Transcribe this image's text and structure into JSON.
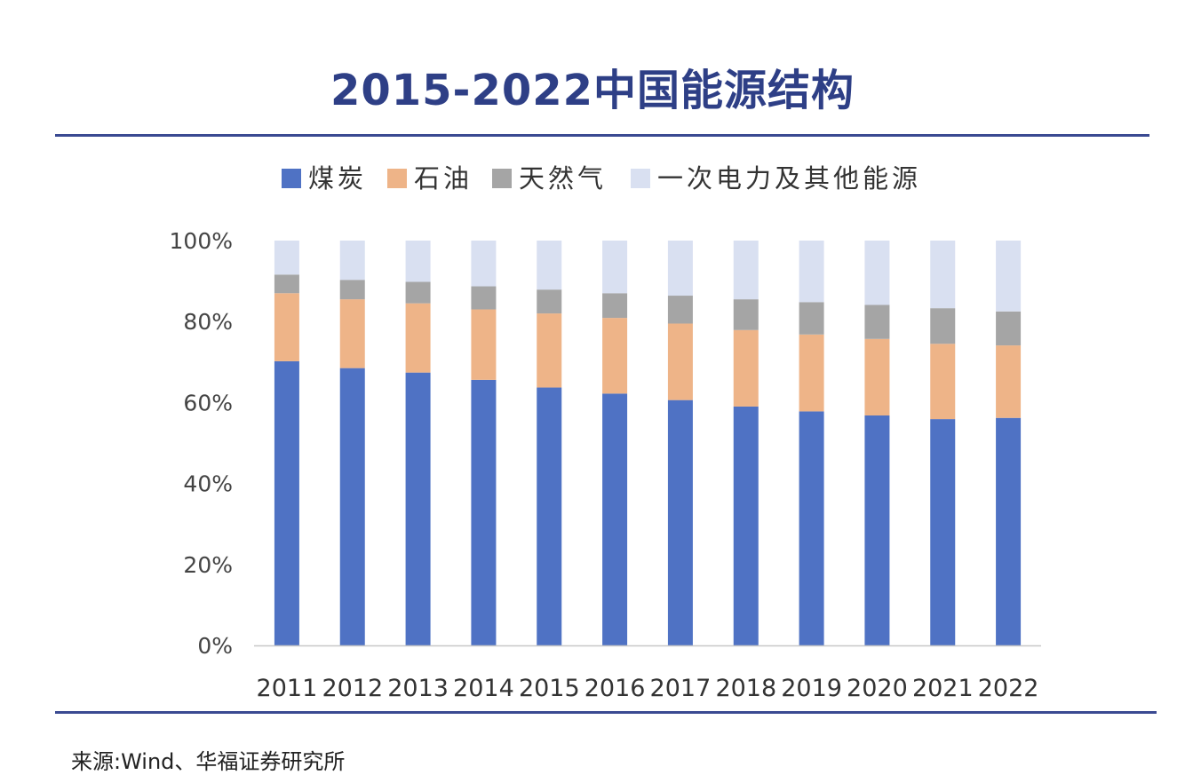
{
  "title": "2015-2022中国能源结构",
  "source": "来源:Wind、华福证券研究所",
  "chart_data": {
    "type": "bar",
    "stacked": true,
    "title": "2015-2022中国能源结构",
    "xlabel": "",
    "ylabel": "",
    "ylim": [
      0,
      100
    ],
    "y_ticks": [
      "0%",
      "20%",
      "40%",
      "60%",
      "80%",
      "100%"
    ],
    "legend_position": "top",
    "categories": [
      "2011",
      "2012",
      "2013",
      "2014",
      "2015",
      "2016",
      "2017",
      "2018",
      "2019",
      "2020",
      "2021",
      "2022"
    ],
    "series": [
      {
        "name": "煤炭",
        "color": "#4f72c4",
        "values": [
          70.2,
          68.5,
          67.4,
          65.6,
          63.7,
          62.2,
          60.6,
          59.0,
          57.8,
          56.8,
          55.9,
          56.2
        ]
      },
      {
        "name": "石油",
        "color": "#eeb488",
        "values": [
          16.8,
          17.0,
          17.1,
          17.4,
          18.3,
          18.7,
          18.9,
          18.9,
          19.0,
          18.9,
          18.6,
          17.9
        ]
      },
      {
        "name": "天然气",
        "color": "#a5a5a5",
        "values": [
          4.6,
          4.8,
          5.3,
          5.7,
          5.9,
          6.1,
          6.9,
          7.6,
          8.0,
          8.4,
          8.8,
          8.4
        ]
      },
      {
        "name": "一次电力及其他能源",
        "color": "#d9e0f1",
        "values": [
          8.4,
          9.7,
          10.2,
          11.3,
          12.1,
          13.0,
          13.6,
          14.5,
          15.2,
          15.9,
          16.7,
          17.5
        ]
      }
    ]
  }
}
